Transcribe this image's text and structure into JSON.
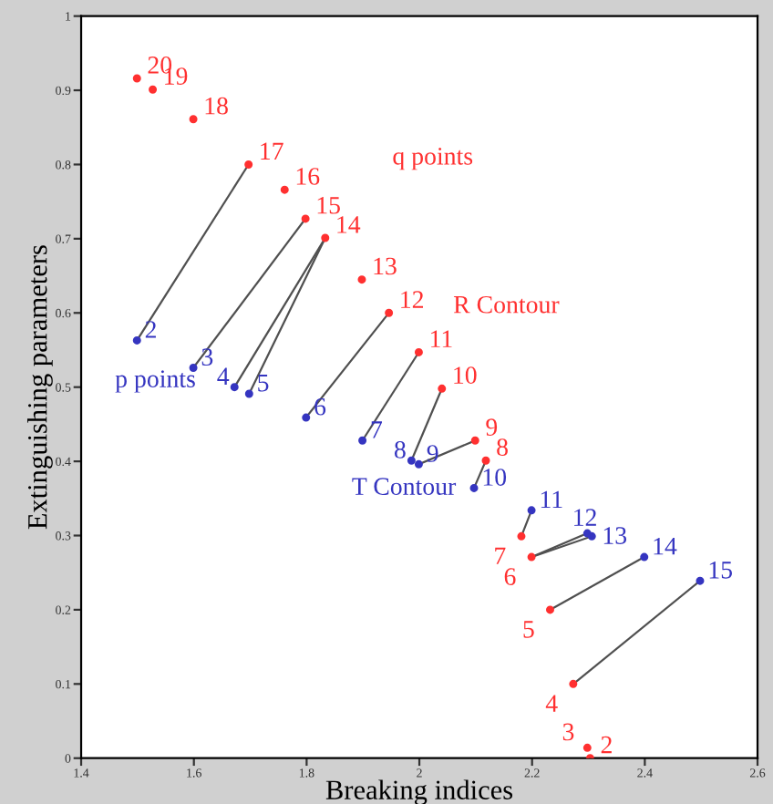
{
  "chart_data": {
    "type": "scatter",
    "xlabel": "Breaking indices",
    "ylabel": "Extinguishing parameters",
    "xlim": [
      1.4,
      2.6
    ],
    "ylim": [
      0,
      1
    ],
    "xticks": [
      1.4,
      1.6,
      1.8,
      2,
      2.2,
      2.4,
      2.6
    ],
    "yticks": [
      0,
      0.1,
      0.2,
      0.3,
      0.4,
      0.5,
      0.6,
      0.7,
      0.8,
      0.9,
      1
    ],
    "grid": false,
    "series": [
      {
        "type": "line",
        "marker": "none",
        "color": "#505050",
        "x": [
          1.499,
          1.697
        ],
        "values": [
          0.563,
          0.8
        ]
      },
      {
        "type": "line",
        "marker": "none",
        "color": "#505050",
        "x": [
          1.599,
          1.798
        ],
        "values": [
          0.526,
          0.727
        ]
      },
      {
        "type": "line",
        "marker": "none",
        "color": "#505050",
        "x": [
          1.672,
          1.833
        ],
        "values": [
          0.5,
          0.701
        ]
      },
      {
        "type": "line",
        "marker": "none",
        "color": "#505050",
        "x": [
          1.698,
          1.833
        ],
        "values": [
          0.491,
          0.701
        ]
      },
      {
        "type": "line",
        "marker": "none",
        "color": "#505050",
        "x": [
          1.799,
          1.946
        ],
        "values": [
          0.459,
          0.6
        ]
      },
      {
        "type": "line",
        "marker": "none",
        "color": "#505050",
        "x": [
          1.899,
          1.999
        ],
        "values": [
          0.428,
          0.547
        ]
      },
      {
        "type": "line",
        "marker": "none",
        "color": "#505050",
        "x": [
          1.986,
          2.04
        ],
        "values": [
          0.401,
          0.498
        ]
      },
      {
        "type": "line",
        "marker": "none",
        "color": "#505050",
        "x": [
          1.999,
          2.099
        ],
        "values": [
          0.396,
          0.428
        ]
      },
      {
        "type": "line",
        "marker": "none",
        "color": "#505050",
        "x": [
          2.097,
          2.118
        ],
        "values": [
          0.364,
          0.401
        ]
      },
      {
        "type": "line",
        "marker": "none",
        "color": "#505050",
        "x": [
          2.199,
          2.181
        ],
        "values": [
          0.334,
          0.299
        ]
      },
      {
        "type": "line",
        "marker": "none",
        "color": "#505050",
        "x": [
          2.298,
          2.199
        ],
        "values": [
          0.303,
          0.271
        ]
      },
      {
        "type": "line",
        "marker": "none",
        "color": "#505050",
        "x": [
          2.306,
          2.199
        ],
        "values": [
          0.299,
          0.271
        ]
      },
      {
        "type": "line",
        "marker": "none",
        "color": "#505050",
        "x": [
          2.399,
          2.232
        ],
        "values": [
          0.271,
          0.2
        ]
      },
      {
        "type": "line",
        "marker": "none",
        "color": "#505050",
        "x": [
          2.498,
          2.273
        ],
        "values": [
          0.239,
          0.1
        ]
      },
      {
        "name": "q points",
        "marker": "circle",
        "color": "#ff3030",
        "x": [
          1.499,
          1.527,
          1.599,
          1.697,
          1.761,
          1.798,
          1.833,
          1.898,
          1.946,
          1.999,
          2.04,
          2.099,
          2.118,
          2.181,
          2.199,
          2.232,
          2.273,
          2.298,
          2.303
        ],
        "values": [
          0.916,
          0.901,
          0.861,
          0.8,
          0.766,
          0.727,
          0.701,
          0.645,
          0.6,
          0.547,
          0.498,
          0.428,
          0.401,
          0.299,
          0.271,
          0.2,
          0.1,
          0.014,
          0.0
        ]
      },
      {
        "name": "p points",
        "marker": "circle",
        "color": "#3535c0",
        "x": [
          1.499,
          1.599,
          1.672,
          1.698,
          1.799,
          1.899,
          1.986,
          1.999,
          2.097,
          2.199,
          2.298,
          2.306,
          2.399,
          2.498
        ],
        "values": [
          0.563,
          0.526,
          0.5,
          0.491,
          0.459,
          0.428,
          0.401,
          0.396,
          0.364,
          0.334,
          0.303,
          0.299,
          0.271,
          0.239
        ]
      }
    ],
    "annotations": [
      "R Contour",
      "T Contour",
      {
        "text": "20",
        "x": 1.499,
        "y": 0.916
      },
      {
        "text": "19",
        "x": 1.527,
        "y": 0.901
      },
      {
        "text": "18",
        "x": 1.599,
        "y": 0.861
      },
      {
        "text": "17",
        "x": 1.697,
        "y": 0.8
      },
      {
        "text": "16",
        "x": 1.761,
        "y": 0.766
      },
      {
        "text": "15",
        "x": 1.798,
        "y": 0.727
      },
      {
        "text": "14",
        "x": 1.833,
        "y": 0.701
      },
      {
        "text": "13",
        "x": 1.898,
        "y": 0.645
      },
      {
        "text": "12",
        "x": 1.946,
        "y": 0.6
      },
      {
        "text": "11",
        "x": 1.999,
        "y": 0.547
      },
      {
        "text": "10",
        "x": 2.04,
        "y": 0.498
      },
      {
        "text": "9",
        "x": 2.099,
        "y": 0.428
      },
      {
        "text": "8",
        "x": 2.118,
        "y": 0.401
      },
      {
        "text": "7",
        "x": 2.181,
        "y": 0.299
      },
      {
        "text": "6",
        "x": 2.199,
        "y": 0.271
      },
      {
        "text": "5",
        "x": 2.232,
        "y": 0.2
      },
      {
        "text": "4",
        "x": 2.273,
        "y": 0.1
      },
      {
        "text": "3",
        "x": 2.298,
        "y": 0.014
      },
      {
        "text": "2",
        "x": 2.303,
        "y": 0.0
      },
      {
        "text": "2",
        "x": 1.499,
        "y": 0.563
      },
      {
        "text": "3",
        "x": 1.599,
        "y": 0.526
      },
      {
        "text": "4",
        "x": 1.672,
        "y": 0.5
      },
      {
        "text": "5",
        "x": 1.698,
        "y": 0.491
      },
      {
        "text": "6",
        "x": 1.799,
        "y": 0.459
      },
      {
        "text": "7",
        "x": 1.899,
        "y": 0.428
      },
      {
        "text": "8",
        "x": 1.986,
        "y": 0.401
      },
      {
        "text": "9",
        "x": 1.999,
        "y": 0.396
      },
      {
        "text": "10",
        "x": 2.097,
        "y": 0.364
      },
      {
        "text": "11",
        "x": 2.199,
        "y": 0.334
      },
      {
        "text": "12",
        "x": 2.298,
        "y": 0.303
      },
      {
        "text": "13",
        "x": 2.306,
        "y": 0.299
      },
      {
        "text": "14",
        "x": 2.399,
        "y": 0.271
      },
      {
        "text": "15",
        "x": 2.498,
        "y": 0.239
      }
    ]
  }
}
